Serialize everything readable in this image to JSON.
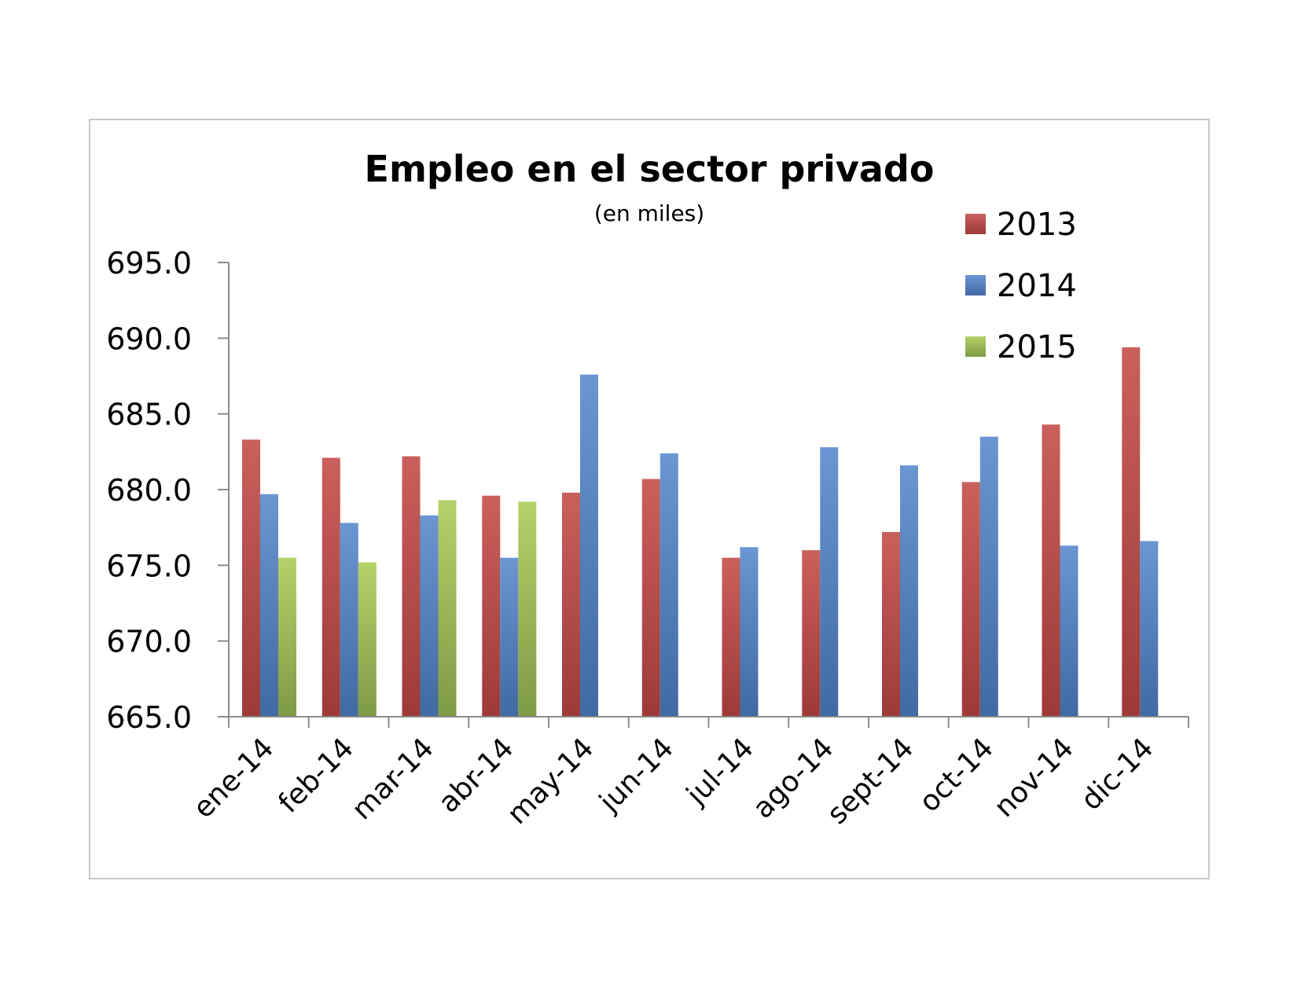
{
  "chart_data": {
    "type": "bar",
    "title": "Empleo en el sector privado",
    "subtitle": "(en miles)",
    "categories": [
      "ene-14",
      "feb-14",
      "mar-14",
      "abr-14",
      "may-14",
      "jun-14",
      "jul-14",
      "ago-14",
      "sept-14",
      "oct-14",
      "nov-14",
      "dic-14"
    ],
    "series": [
      {
        "name": "2013",
        "color": "#c0504d",
        "values": [
          683.3,
          682.1,
          682.2,
          679.6,
          679.8,
          680.7,
          675.5,
          676.0,
          677.2,
          680.5,
          684.3,
          689.4
        ]
      },
      {
        "name": "2014",
        "color": "#4f81bd",
        "values": [
          679.7,
          677.8,
          678.3,
          675.5,
          687.6,
          682.4,
          676.2,
          682.8,
          681.6,
          683.5,
          676.3,
          676.6
        ]
      },
      {
        "name": "2015",
        "color": "#9bbb59",
        "values": [
          675.5,
          675.2,
          679.3,
          679.2,
          null,
          null,
          null,
          null,
          null,
          null,
          null,
          null
        ]
      }
    ],
    "ylim": [
      665.0,
      695.0
    ],
    "yticks": [
      "695.0",
      "690.0",
      "685.0",
      "680.0",
      "675.0",
      "670.0",
      "665.0"
    ],
    "xlabel": "",
    "ylabel": "",
    "grid": false,
    "legend_position": "top-right"
  }
}
